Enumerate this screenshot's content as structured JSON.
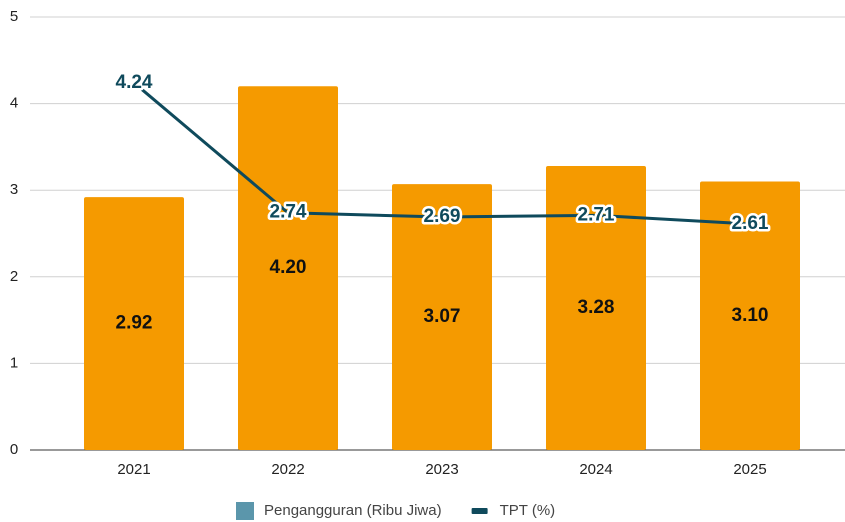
{
  "chart_data": {
    "type": "bar",
    "categories": [
      "2021",
      "2022",
      "2023",
      "2024",
      "2025"
    ],
    "series": [
      {
        "name": "Pengangguran (Ribu Jiwa)",
        "type": "bar",
        "color": "#f59a00",
        "legend_color": "#5b96ab",
        "values": [
          2.92,
          4.2,
          3.07,
          3.28,
          3.1
        ],
        "value_labels": [
          "2.92",
          "4.20",
          "3.07",
          "3.28",
          "3.10"
        ]
      },
      {
        "name": "TPT (%)",
        "type": "line",
        "color": "#0f4a5c",
        "values": [
          4.24,
          2.74,
          2.69,
          2.71,
          2.61
        ],
        "value_labels": [
          "4.24",
          "2.74",
          "2.69",
          "2.71",
          "2.61"
        ]
      }
    ],
    "ylim": [
      0,
      5
    ],
    "yticks": [
      0,
      1,
      2,
      3,
      4,
      5
    ],
    "grid": true,
    "legend": "bottom"
  }
}
